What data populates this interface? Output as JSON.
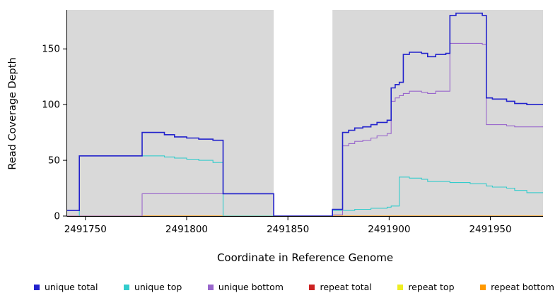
{
  "chart_data": {
    "type": "line",
    "title": "",
    "xlabel": "Coordinate in Reference Genome",
    "ylabel": "Read Coverage Depth",
    "xlim": [
      2491741,
      2491976
    ],
    "ylim": [
      0,
      185
    ],
    "xticks": [
      2491750,
      2491800,
      2491850,
      2491900,
      2491950
    ],
    "yticks": [
      0,
      50,
      100,
      150
    ],
    "panel_bg": "#d9d9d9",
    "grid": false,
    "legend_position": "bottom",
    "gap_region": {
      "x0": 2491843,
      "x1": 2491872,
      "color": "#ffffff"
    },
    "series": [
      {
        "name": "unique total",
        "color": "#2222cc",
        "width": 1.6,
        "draw_order": 6,
        "points": [
          [
            2491741,
            5
          ],
          [
            2491747,
            5
          ],
          [
            2491747,
            54
          ],
          [
            2491778,
            54
          ],
          [
            2491778,
            75
          ],
          [
            2491789,
            75
          ],
          [
            2491789,
            73
          ],
          [
            2491794,
            73
          ],
          [
            2491794,
            71
          ],
          [
            2491800,
            71
          ],
          [
            2491800,
            70
          ],
          [
            2491806,
            70
          ],
          [
            2491806,
            69
          ],
          [
            2491813,
            69
          ],
          [
            2491813,
            68
          ],
          [
            2491818,
            68
          ],
          [
            2491818,
            20
          ],
          [
            2491843,
            20
          ],
          [
            2491843,
            0
          ],
          [
            2491872,
            0
          ],
          [
            2491872,
            6
          ],
          [
            2491877,
            6
          ],
          [
            2491877,
            75
          ],
          [
            2491880,
            75
          ],
          [
            2491880,
            77
          ],
          [
            2491883,
            77
          ],
          [
            2491883,
            79
          ],
          [
            2491887,
            79
          ],
          [
            2491887,
            80
          ],
          [
            2491891,
            80
          ],
          [
            2491891,
            82
          ],
          [
            2491894,
            82
          ],
          [
            2491894,
            84
          ],
          [
            2491899,
            84
          ],
          [
            2491899,
            86
          ],
          [
            2491901,
            86
          ],
          [
            2491901,
            115
          ],
          [
            2491903,
            115
          ],
          [
            2491903,
            118
          ],
          [
            2491905,
            118
          ],
          [
            2491905,
            120
          ],
          [
            2491907,
            120
          ],
          [
            2491907,
            145
          ],
          [
            2491910,
            145
          ],
          [
            2491910,
            147
          ],
          [
            2491916,
            147
          ],
          [
            2491916,
            146
          ],
          [
            2491919,
            146
          ],
          [
            2491919,
            143
          ],
          [
            2491923,
            143
          ],
          [
            2491923,
            145
          ],
          [
            2491928,
            145
          ],
          [
            2491928,
            146
          ],
          [
            2491930,
            146
          ],
          [
            2491930,
            180
          ],
          [
            2491933,
            180
          ],
          [
            2491933,
            182
          ],
          [
            2491946,
            182
          ],
          [
            2491946,
            180
          ],
          [
            2491948,
            180
          ],
          [
            2491948,
            106
          ],
          [
            2491951,
            106
          ],
          [
            2491951,
            105
          ],
          [
            2491958,
            105
          ],
          [
            2491958,
            103
          ],
          [
            2491962,
            103
          ],
          [
            2491962,
            101
          ],
          [
            2491968,
            101
          ],
          [
            2491968,
            100
          ],
          [
            2491976,
            100
          ]
        ]
      },
      {
        "name": "unique top",
        "color": "#33cccc",
        "width": 1.1,
        "draw_order": 4,
        "points": [
          [
            2491741,
            0
          ],
          [
            2491747,
            0
          ],
          [
            2491747,
            54
          ],
          [
            2491789,
            54
          ],
          [
            2491789,
            53
          ],
          [
            2491794,
            53
          ],
          [
            2491794,
            52
          ],
          [
            2491800,
            52
          ],
          [
            2491800,
            51
          ],
          [
            2491806,
            51
          ],
          [
            2491806,
            50
          ],
          [
            2491813,
            50
          ],
          [
            2491813,
            48
          ],
          [
            2491818,
            48
          ],
          [
            2491818,
            0
          ],
          [
            2491872,
            0
          ],
          [
            2491872,
            5
          ],
          [
            2491883,
            5
          ],
          [
            2491883,
            6
          ],
          [
            2491891,
            6
          ],
          [
            2491891,
            7
          ],
          [
            2491899,
            7
          ],
          [
            2491899,
            8
          ],
          [
            2491901,
            8
          ],
          [
            2491901,
            9
          ],
          [
            2491905,
            9
          ],
          [
            2491905,
            35
          ],
          [
            2491910,
            35
          ],
          [
            2491910,
            34
          ],
          [
            2491916,
            34
          ],
          [
            2491916,
            33
          ],
          [
            2491919,
            33
          ],
          [
            2491919,
            31
          ],
          [
            2491930,
            31
          ],
          [
            2491930,
            30
          ],
          [
            2491940,
            30
          ],
          [
            2491940,
            29
          ],
          [
            2491948,
            29
          ],
          [
            2491948,
            27
          ],
          [
            2491951,
            27
          ],
          [
            2491951,
            26
          ],
          [
            2491958,
            26
          ],
          [
            2491958,
            25
          ],
          [
            2491962,
            25
          ],
          [
            2491962,
            23
          ],
          [
            2491968,
            23
          ],
          [
            2491968,
            21
          ],
          [
            2491976,
            21
          ]
        ]
      },
      {
        "name": "unique bottom",
        "color": "#9966cc",
        "width": 1.1,
        "draw_order": 5,
        "points": [
          [
            2491741,
            0
          ],
          [
            2491778,
            0
          ],
          [
            2491778,
            20
          ],
          [
            2491843,
            20
          ],
          [
            2491843,
            0
          ],
          [
            2491872,
            0
          ],
          [
            2491872,
            1
          ],
          [
            2491877,
            1
          ],
          [
            2491877,
            63
          ],
          [
            2491880,
            63
          ],
          [
            2491880,
            65
          ],
          [
            2491883,
            65
          ],
          [
            2491883,
            67
          ],
          [
            2491887,
            67
          ],
          [
            2491887,
            68
          ],
          [
            2491891,
            68
          ],
          [
            2491891,
            70
          ],
          [
            2491894,
            70
          ],
          [
            2491894,
            72
          ],
          [
            2491899,
            72
          ],
          [
            2491899,
            74
          ],
          [
            2491901,
            74
          ],
          [
            2491901,
            103
          ],
          [
            2491903,
            103
          ],
          [
            2491903,
            106
          ],
          [
            2491905,
            106
          ],
          [
            2491905,
            108
          ],
          [
            2491907,
            108
          ],
          [
            2491907,
            110
          ],
          [
            2491910,
            110
          ],
          [
            2491910,
            112
          ],
          [
            2491916,
            112
          ],
          [
            2491916,
            111
          ],
          [
            2491919,
            111
          ],
          [
            2491919,
            110
          ],
          [
            2491923,
            110
          ],
          [
            2491923,
            112
          ],
          [
            2491930,
            112
          ],
          [
            2491930,
            155
          ],
          [
            2491946,
            155
          ],
          [
            2491946,
            154
          ],
          [
            2491948,
            154
          ],
          [
            2491948,
            82
          ],
          [
            2491958,
            82
          ],
          [
            2491958,
            81
          ],
          [
            2491962,
            81
          ],
          [
            2491962,
            80
          ],
          [
            2491976,
            80
          ]
        ]
      },
      {
        "name": "repeat total",
        "color": "#cc2222",
        "width": 1.0,
        "draw_order": 1,
        "points": [
          [
            2491741,
            0
          ],
          [
            2491976,
            0
          ]
        ]
      },
      {
        "name": "repeat top",
        "color": "#eeee22",
        "width": 1.0,
        "draw_order": 2,
        "points": [
          [
            2491741,
            0
          ],
          [
            2491976,
            0
          ]
        ]
      },
      {
        "name": "repeat bottom",
        "color": "#ff9900",
        "width": 1.3,
        "draw_order": 3,
        "points": [
          [
            2491741,
            0
          ],
          [
            2491976,
            0
          ]
        ]
      }
    ]
  }
}
